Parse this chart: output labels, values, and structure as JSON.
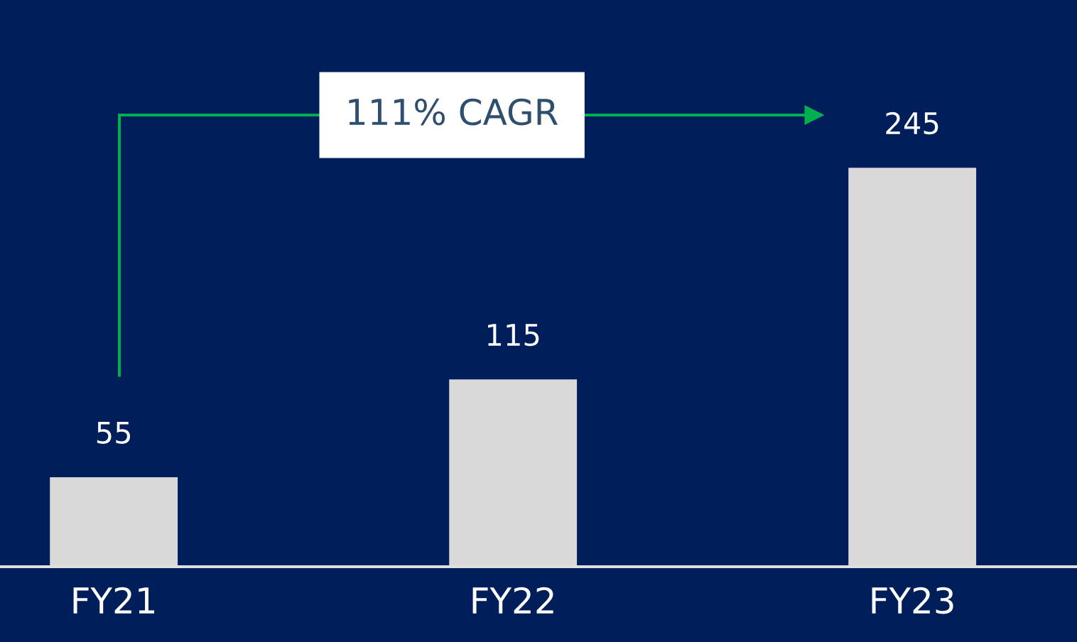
{
  "chart_data": {
    "type": "bar",
    "categories": [
      "FY21",
      "FY22",
      "FY23"
    ],
    "values": [
      55,
      115,
      245
    ],
    "color": "#d9d9d9",
    "data_labels": true,
    "annotations": [
      "111% CAGR"
    ]
  }
}
